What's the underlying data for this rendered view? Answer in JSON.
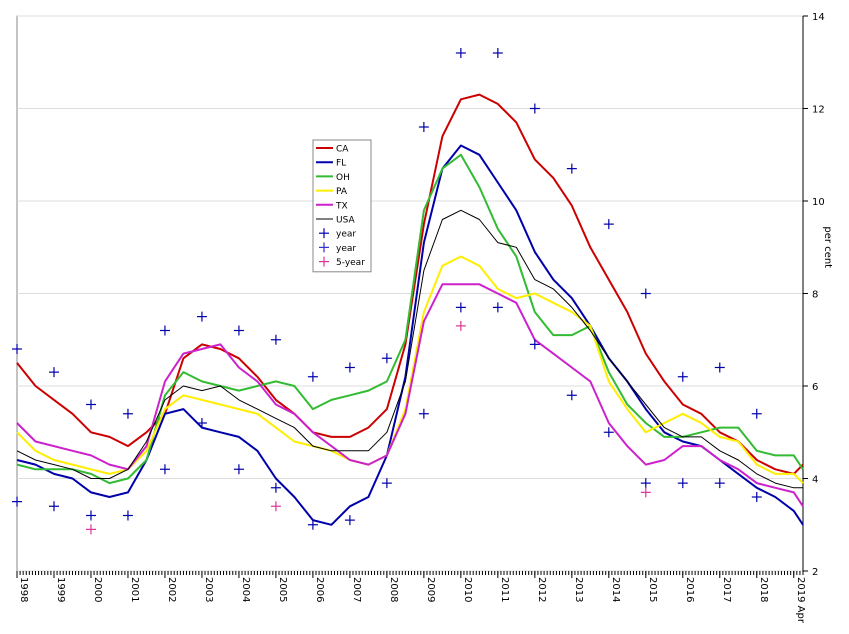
{
  "chart_data": {
    "type": "line",
    "title": "",
    "xlabel": "",
    "ylabel": "per cent",
    "ylim": [
      2,
      14
    ],
    "xlim": [
      1998.0,
      2019.25
    ],
    "x_tick_labels": [
      "1998",
      "1999",
      "2000",
      "2001",
      "2002",
      "2003",
      "2004",
      "2005",
      "2006",
      "2007",
      "2008",
      "2009",
      "2010",
      "2011",
      "2012",
      "2013",
      "2014",
      "2015",
      "2016",
      "2017",
      "2018",
      "2019 Apr"
    ],
    "y_ticks": [
      2,
      4,
      6,
      8,
      10,
      12,
      14
    ],
    "y_tick_labels": [
      "2",
      "4",
      "6",
      "8",
      "10",
      "12",
      "14"
    ],
    "grid": true,
    "legend_position": "center-left",
    "x": [
      1998.0,
      1998.5,
      1999.0,
      1999.5,
      2000.0,
      2000.5,
      2001.0,
      2001.5,
      2002.0,
      2002.5,
      2003.0,
      2003.5,
      2004.0,
      2004.5,
      2005.0,
      2005.5,
      2006.0,
      2006.5,
      2007.0,
      2007.5,
      2008.0,
      2008.5,
      2009.0,
      2009.5,
      2010.0,
      2010.5,
      2011.0,
      2011.5,
      2012.0,
      2012.5,
      2013.0,
      2013.5,
      2014.0,
      2014.5,
      2015.0,
      2015.5,
      2016.0,
      2016.5,
      2017.0,
      2017.5,
      2018.0,
      2018.5,
      2019.0,
      2019.25
    ],
    "series": [
      {
        "name": "CA",
        "color": "#cc0000",
        "width": 2,
        "values": [
          6.5,
          6.0,
          5.7,
          5.4,
          5.0,
          4.9,
          4.7,
          5.0,
          5.4,
          6.6,
          6.9,
          6.8,
          6.6,
          6.2,
          5.7,
          5.4,
          5.0,
          4.9,
          4.9,
          5.1,
          5.5,
          6.9,
          9.5,
          11.4,
          12.2,
          12.3,
          12.1,
          11.7,
          10.9,
          10.5,
          9.9,
          9.0,
          8.3,
          7.6,
          6.7,
          6.1,
          5.6,
          5.4,
          5.0,
          4.8,
          4.4,
          4.2,
          4.1,
          4.3
        ]
      },
      {
        "name": "FL",
        "color": "#0000aa",
        "width": 2,
        "values": [
          4.4,
          4.3,
          4.1,
          4.0,
          3.7,
          3.6,
          3.7,
          4.4,
          5.4,
          5.5,
          5.1,
          5.0,
          4.9,
          4.6,
          4.0,
          3.6,
          3.1,
          3.0,
          3.4,
          3.6,
          4.5,
          6.2,
          9.1,
          10.7,
          11.2,
          11.0,
          10.4,
          9.8,
          8.9,
          8.3,
          7.9,
          7.3,
          6.6,
          6.1,
          5.5,
          5.0,
          4.8,
          4.7,
          4.4,
          4.1,
          3.8,
          3.6,
          3.3,
          3.0
        ]
      },
      {
        "name": "OH",
        "color": "#33bb33",
        "width": 2,
        "values": [
          4.3,
          4.2,
          4.2,
          4.2,
          4.1,
          3.9,
          4.0,
          4.4,
          5.8,
          6.3,
          6.1,
          6.0,
          5.9,
          6.0,
          6.1,
          6.0,
          5.5,
          5.7,
          5.8,
          5.9,
          6.1,
          7.0,
          9.8,
          10.7,
          11.0,
          10.3,
          9.4,
          8.8,
          7.6,
          7.1,
          7.1,
          7.3,
          6.3,
          5.6,
          5.2,
          4.9,
          4.9,
          5.0,
          5.1,
          5.1,
          4.6,
          4.5,
          4.5,
          4.2
        ]
      },
      {
        "name": "PA",
        "color": "#ffee00",
        "width": 2,
        "values": [
          5.0,
          4.6,
          4.4,
          4.3,
          4.2,
          4.1,
          4.2,
          4.6,
          5.5,
          5.8,
          5.7,
          5.6,
          5.5,
          5.4,
          5.1,
          4.8,
          4.7,
          4.6,
          4.4,
          4.3,
          4.5,
          5.5,
          7.6,
          8.6,
          8.8,
          8.6,
          8.1,
          7.9,
          8.0,
          7.8,
          7.6,
          7.3,
          6.1,
          5.5,
          5.0,
          5.2,
          5.4,
          5.2,
          4.9,
          4.8,
          4.3,
          4.1,
          4.1,
          3.9
        ]
      },
      {
        "name": "TX",
        "color": "#cc22cc",
        "width": 2,
        "values": [
          5.2,
          4.8,
          4.7,
          4.6,
          4.5,
          4.3,
          4.2,
          4.7,
          6.1,
          6.7,
          6.8,
          6.9,
          6.4,
          6.1,
          5.6,
          5.4,
          5.0,
          4.7,
          4.4,
          4.3,
          4.5,
          5.4,
          7.4,
          8.2,
          8.2,
          8.2,
          8.0,
          7.8,
          7.0,
          6.7,
          6.4,
          6.1,
          5.2,
          4.7,
          4.3,
          4.4,
          4.7,
          4.7,
          4.4,
          4.2,
          3.9,
          3.8,
          3.7,
          3.4
        ]
      },
      {
        "name": "USA",
        "color": "#000000",
        "width": 1,
        "values": [
          4.6,
          4.4,
          4.3,
          4.2,
          4.0,
          4.0,
          4.2,
          4.8,
          5.7,
          6.0,
          5.9,
          6.0,
          5.7,
          5.5,
          5.3,
          5.1,
          4.7,
          4.6,
          4.6,
          4.6,
          5.0,
          6.1,
          8.5,
          9.6,
          9.8,
          9.6,
          9.1,
          9.0,
          8.3,
          8.1,
          7.7,
          7.2,
          6.6,
          6.1,
          5.6,
          5.1,
          4.9,
          4.9,
          4.6,
          4.4,
          4.1,
          3.9,
          3.8,
          3.8
        ]
      }
    ],
    "markers": [
      {
        "name": "year",
        "symbol": "+",
        "color": "#0000aa",
        "points": [
          [
            1998.0,
            6.8
          ],
          [
            1998.0,
            3.5
          ],
          [
            1999.0,
            6.3
          ],
          [
            1999.0,
            3.4
          ],
          [
            2000.0,
            5.6
          ],
          [
            2000.0,
            3.2
          ],
          [
            2001.0,
            5.4
          ],
          [
            2001.0,
            3.2
          ],
          [
            2002.0,
            7.2
          ],
          [
            2002.0,
            4.2
          ],
          [
            2003.0,
            7.5
          ],
          [
            2003.0,
            5.2
          ],
          [
            2004.0,
            7.2
          ],
          [
            2004.0,
            4.2
          ],
          [
            2005.0,
            7.0
          ],
          [
            2005.0,
            3.8
          ],
          [
            2006.0,
            6.2
          ],
          [
            2006.0,
            3.0
          ],
          [
            2007.0,
            6.4
          ],
          [
            2007.0,
            3.1
          ],
          [
            2008.0,
            6.6
          ],
          [
            2008.0,
            3.9
          ],
          [
            2009.0,
            11.6
          ],
          [
            2009.0,
            5.4
          ],
          [
            2010.0,
            13.2
          ],
          [
            2010.0,
            7.7
          ],
          [
            2011.0,
            13.2
          ],
          [
            2011.0,
            7.7
          ],
          [
            2012.0,
            12.0
          ],
          [
            2012.0,
            6.9
          ],
          [
            2013.0,
            10.7
          ],
          [
            2013.0,
            5.8
          ],
          [
            2014.0,
            9.5
          ],
          [
            2014.0,
            5.0
          ],
          [
            2015.0,
            8.0
          ],
          [
            2015.0,
            3.9
          ],
          [
            2016.0,
            6.2
          ],
          [
            2016.0,
            3.9
          ],
          [
            2017.0,
            6.4
          ],
          [
            2017.0,
            3.9
          ],
          [
            2018.0,
            5.4
          ],
          [
            2018.0,
            3.6
          ]
        ]
      },
      {
        "name": "year",
        "symbol": "+",
        "color": "#3333cc",
        "points": []
      },
      {
        "name": "5-year",
        "symbol": "+",
        "color": "#dd3399",
        "points": [
          [
            2000.0,
            2.9
          ],
          [
            2005.0,
            3.4
          ],
          [
            2010.0,
            7.3
          ],
          [
            2015.0,
            3.7
          ]
        ]
      }
    ],
    "legend": [
      {
        "label": "CA",
        "color": "#cc0000",
        "kind": "line"
      },
      {
        "label": "FL",
        "color": "#0000aa",
        "kind": "line"
      },
      {
        "label": "OH",
        "color": "#33bb33",
        "kind": "line"
      },
      {
        "label": "PA",
        "color": "#ffee00",
        "kind": "line"
      },
      {
        "label": "TX",
        "color": "#cc22cc",
        "kind": "line"
      },
      {
        "label": "USA",
        "color": "#000000",
        "kind": "line"
      },
      {
        "label": "year",
        "color": "#0000aa",
        "kind": "marker"
      },
      {
        "label": "year",
        "color": "#3333cc",
        "kind": "marker"
      },
      {
        "label": "5-year",
        "color": "#dd3399",
        "kind": "marker"
      }
    ]
  }
}
